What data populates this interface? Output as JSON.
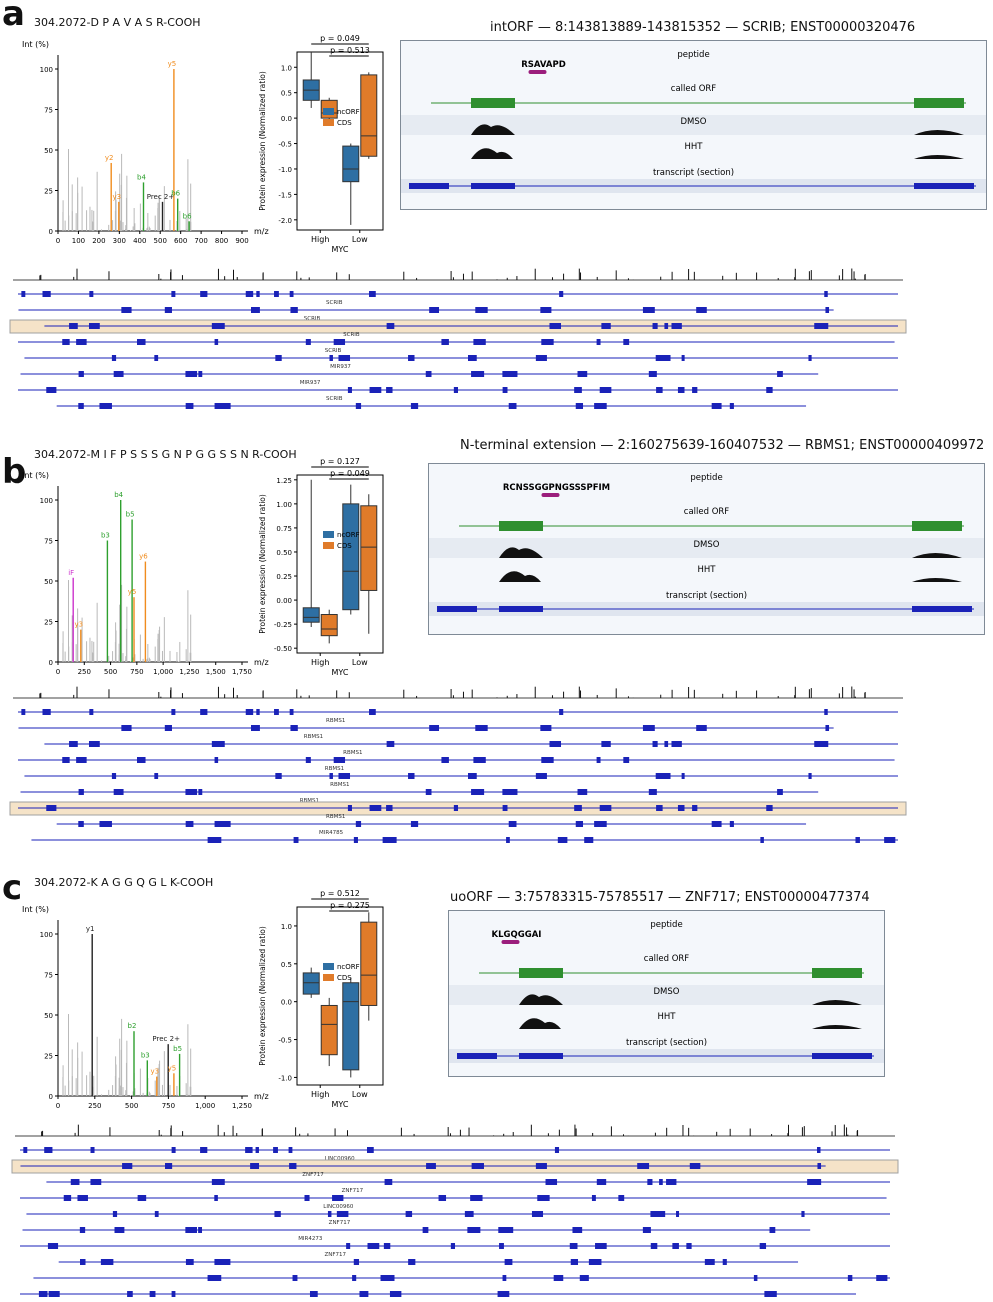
{
  "panels": [
    {
      "id": "a",
      "letter": "a",
      "sequence": "304.2072-D P A V A S R-COOH",
      "title": "intORF — 8:143813889-143815352 — SCRIB; ENST00000320476",
      "spectrum": {
        "ylabel": "Int (%)",
        "xlabel": "m/z",
        "xticks": [
          "0",
          "100",
          "200",
          "300",
          "400",
          "500",
          "600",
          "700",
          "800",
          "900"
        ],
        "yticks": [
          "0",
          "25",
          "50",
          "75",
          "100"
        ],
        "peak_labels": [
          "y2",
          "y3",
          "b4",
          "Prec 2+",
          "y5",
          "b6",
          "b6"
        ]
      },
      "boxplot": {
        "ylabel": "Protein expression (Normalized ratio)",
        "xlabel": "MYC",
        "categories": [
          "High",
          "Low"
        ],
        "yticks": [
          "1.0",
          "0.5",
          "0.0",
          "-0.5",
          "-1.0",
          "-1.5",
          "-2.0"
        ],
        "ylim": [
          -2.2,
          1.3
        ],
        "legend": [
          "ncORF",
          "CDS"
        ],
        "pvals": [
          "p = 0.049",
          "p = 0.513"
        ],
        "star": "*"
      },
      "detail": {
        "peptide": "RSAVAPD",
        "peptide_track": "peptide",
        "orf_track": "called ORF",
        "dmso": "DMSO",
        "hht": "HHT",
        "transcript": "transcript (section)"
      },
      "genes": [
        "SCRIB",
        "SCRIB",
        "SCRIB",
        "SCRIB",
        "MIR937",
        "MIR937",
        "SCRIB"
      ]
    },
    {
      "id": "b",
      "letter": "b",
      "sequence": "304.2072-M I F P S S S G N P G G S S N R-COOH",
      "title": "N-terminal extension — 2:160275639-160407532 — RBMS1; ENST00000409972",
      "spectrum": {
        "ylabel": "Int (%)",
        "xlabel": "m/z",
        "xticks": [
          "0",
          "250",
          "500",
          "750",
          "1,000",
          "1,250",
          "1,500",
          "1,750"
        ],
        "yticks": [
          "0",
          "25",
          "50",
          "75",
          "100"
        ],
        "peak_labels": [
          "iF",
          "y3",
          "b3",
          "b4",
          "b5",
          "y5",
          "y6"
        ]
      },
      "boxplot": {
        "ylabel": "Protein expression (Normalized ratio)",
        "xlabel": "MYC",
        "categories": [
          "High",
          "Low"
        ],
        "yticks": [
          "1.25",
          "1.00",
          "0.75",
          "0.50",
          "0.25",
          "0.00",
          "-0.25",
          "-0.50"
        ],
        "ylim": [
          -0.55,
          1.3
        ],
        "legend": [
          "ncORF",
          "CDS"
        ],
        "pvals": [
          "p = 0.127",
          "p = 0.049"
        ],
        "star": "*"
      },
      "detail": {
        "peptide": "RCNSSGGPNGSSSPFIM",
        "peptide_track": "peptide",
        "orf_track": "called ORF",
        "dmso": "DMSO",
        "hht": "HHT",
        "transcript": "transcript (section)"
      },
      "genes": [
        "RBMS1",
        "RBMS1",
        "RBMS1",
        "RBMS1",
        "RBMS1",
        "RBMS1",
        "RBMS1",
        "MIR4785"
      ]
    },
    {
      "id": "c",
      "letter": "c",
      "sequence": "304.2072-K A G G Q G L K-COOH",
      "title": "uoORF — 3:75783315-75785517 — ZNF717; ENST00000477374",
      "spectrum": {
        "ylabel": "Int (%)",
        "xlabel": "m/z",
        "xticks": [
          "0",
          "250",
          "500",
          "750",
          "1,000",
          "1,250"
        ],
        "yticks": [
          "0",
          "25",
          "50",
          "75",
          "100"
        ],
        "peak_labels": [
          "y1",
          "b2",
          "b3",
          "Prec 2+",
          "y5",
          "b5",
          "y3"
        ]
      },
      "boxplot": {
        "ylabel": "Protein expression (Normalized ratio)",
        "xlabel": "MYC",
        "categories": [
          "High",
          "Low"
        ],
        "yticks": [
          "1.0",
          "0.5",
          "0.0",
          "-0.5",
          "-1.0"
        ],
        "ylim": [
          -1.1,
          1.25
        ],
        "legend": [
          "ncORF",
          "CDS"
        ],
        "pvals": [
          "p = 0.512",
          "p = 0.275"
        ],
        "star": ""
      },
      "detail": {
        "peptide": "KLGQGGAI",
        "peptide_track": "peptide",
        "orf_track": "called ORF",
        "dmso": "DMSO",
        "hht": "HHT",
        "transcript": "transcript (section)"
      },
      "genes": [
        "LINC00960",
        "ZNF717",
        "ZNF717",
        "LINC00960",
        "ZNF717",
        "MIR4273",
        "ZNF717"
      ]
    }
  ],
  "colors": {
    "ncorf": "#2e6fa3",
    "cds": "#e07b2a",
    "gene": "#1a22b8",
    "orf": "#2f8f2f",
    "highlight": "#f5e3c8",
    "peptide": "#9b1e7c",
    "y_ion": "#f08c1e",
    "b_ion": "#2ea02e"
  }
}
